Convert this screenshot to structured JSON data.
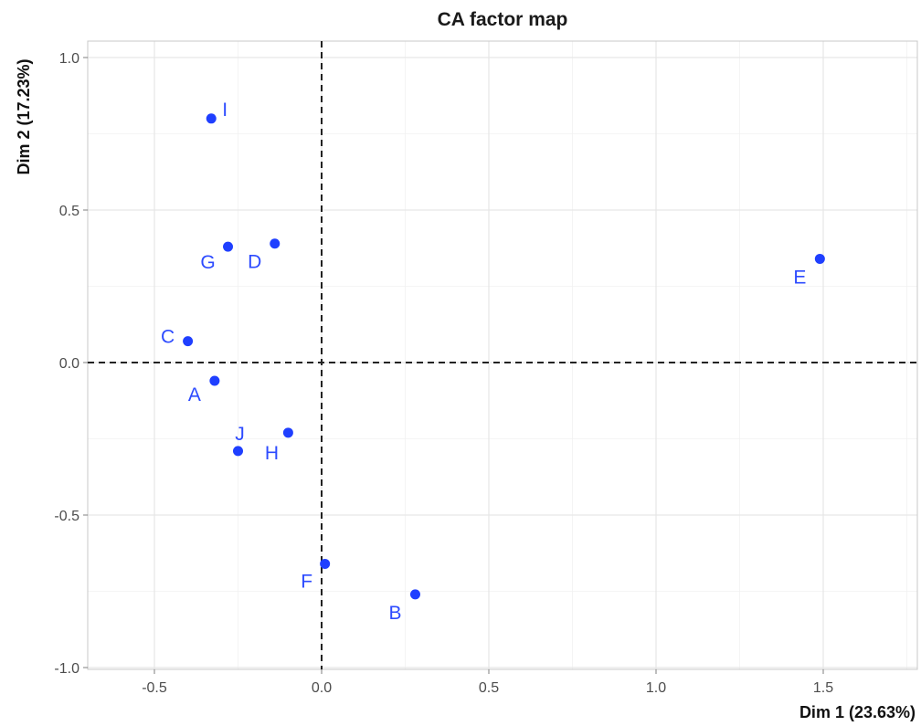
{
  "chart_data": {
    "type": "scatter",
    "title": "CA factor map",
    "xlabel": "Dim 1 (23.63%)",
    "ylabel": "Dim 2 (17.23%)",
    "xlim": [
      -0.7,
      1.78
    ],
    "ylim": [
      -1.0,
      1.05
    ],
    "x_ticks": [
      -0.5,
      0.0,
      0.5,
      1.0,
      1.5
    ],
    "y_ticks": [
      -1.0,
      -0.5,
      0.0,
      0.5,
      1.0
    ],
    "x_tick_labels": [
      "-0.5",
      "0.0",
      "0.5",
      "1.0",
      "1.5"
    ],
    "y_tick_labels": [
      "-1.0",
      "-0.5",
      "0.0",
      "0.5",
      "1.0"
    ],
    "grid": true,
    "reference_lines": {
      "x": 0.0,
      "y": 0.0
    },
    "point_color": "#1f3fff",
    "label_color": "#2d4bff",
    "points": [
      {
        "label": "A",
        "x": -0.32,
        "y": -0.06
      },
      {
        "label": "B",
        "x": 0.28,
        "y": -0.76
      },
      {
        "label": "C",
        "x": -0.4,
        "y": 0.07
      },
      {
        "label": "D",
        "x": -0.14,
        "y": 0.39
      },
      {
        "label": "E",
        "x": 1.49,
        "y": 0.34
      },
      {
        "label": "F",
        "x": 0.01,
        "y": -0.66
      },
      {
        "label": "G",
        "x": -0.28,
        "y": 0.38
      },
      {
        "label": "H",
        "x": -0.1,
        "y": -0.23
      },
      {
        "label": "I",
        "x": -0.33,
        "y": 0.8
      },
      {
        "label": "J",
        "x": -0.25,
        "y": -0.29
      }
    ]
  }
}
